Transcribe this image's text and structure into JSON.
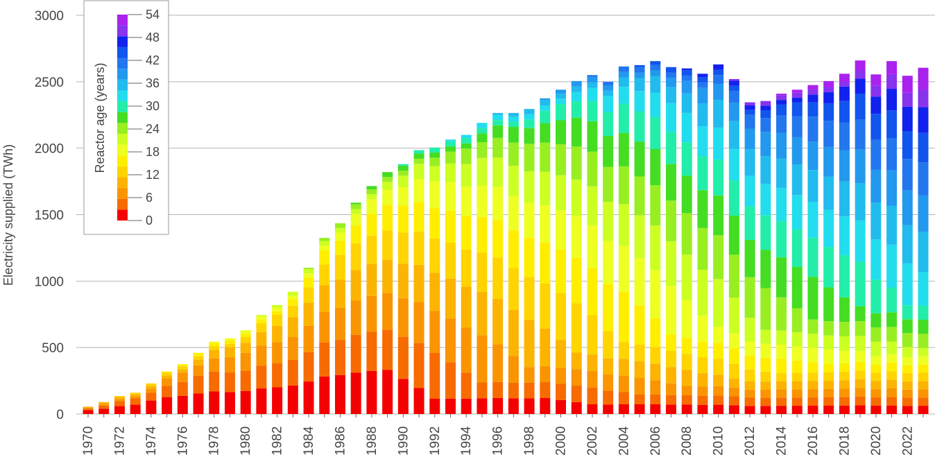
{
  "chart_data": {
    "type": "bar",
    "stacked": true,
    "ylabel": "Electricity supplied (TWh)",
    "xlabel": "",
    "ylim": [
      0,
      3000
    ],
    "yticks": [
      0,
      500,
      1000,
      1500,
      2000,
      2500,
      3000
    ],
    "grid": "horizontal",
    "years": [
      1970,
      1971,
      1972,
      1973,
      1974,
      1975,
      1976,
      1977,
      1978,
      1979,
      1980,
      1981,
      1982,
      1983,
      1984,
      1985,
      1986,
      1987,
      1988,
      1989,
      1990,
      1991,
      1992,
      1993,
      1994,
      1995,
      1996,
      1997,
      1998,
      1999,
      2000,
      2001,
      2002,
      2003,
      2004,
      2005,
      2006,
      2007,
      2008,
      2009,
      2010,
      2011,
      2012,
      2013,
      2014,
      2015,
      2016,
      2017,
      2018,
      2019,
      2020,
      2021,
      2022,
      2023
    ],
    "xtick_labels": [
      "1970",
      "1972",
      "1974",
      "1976",
      "1978",
      "1980",
      "1982",
      "1984",
      "1986",
      "1988",
      "1990",
      "1992",
      "1994",
      "1996",
      "1998",
      "2000",
      "2002",
      "2004",
      "2006",
      "2008",
      "2010",
      "2012",
      "2014",
      "2016",
      "2018",
      "2020",
      "2022"
    ],
    "totals": [
      55,
      90,
      135,
      160,
      230,
      320,
      375,
      460,
      545,
      570,
      630,
      745,
      820,
      920,
      1100,
      1325,
      1435,
      1590,
      1715,
      1820,
      1880,
      1985,
      2005,
      2065,
      2100,
      2190,
      2265,
      2265,
      2295,
      2375,
      2440,
      2505,
      2550,
      2500,
      2615,
      2625,
      2655,
      2610,
      2600,
      2560,
      2630,
      2520,
      2345,
      2355,
      2410,
      2440,
      2475,
      2505,
      2560,
      2660,
      2555,
      2655,
      2545,
      2605
    ],
    "age_bins": [
      0,
      3,
      6,
      9,
      12,
      15,
      18,
      21,
      24,
      27,
      30,
      33,
      36,
      39,
      42,
      45,
      48,
      51,
      54
    ],
    "legend": {
      "title": "Reactor age (years)",
      "tick_labels": [
        "0",
        "6",
        "12",
        "18",
        "24",
        "30",
        "36",
        "42",
        "48",
        "54"
      ],
      "position": "top-left"
    },
    "colors": [
      "#f50000",
      "#f76b00",
      "#fa9400",
      "#fcb400",
      "#ffd400",
      "#ffee00",
      "#eeff22",
      "#ccff22",
      "#99ee22",
      "#44dd22",
      "#22eeaa",
      "#22ddee",
      "#22bbee",
      "#2299ee",
      "#2277ee",
      "#1155ee",
      "#1122ee",
      "#8833ee",
      "#aa22ee"
    ]
  }
}
